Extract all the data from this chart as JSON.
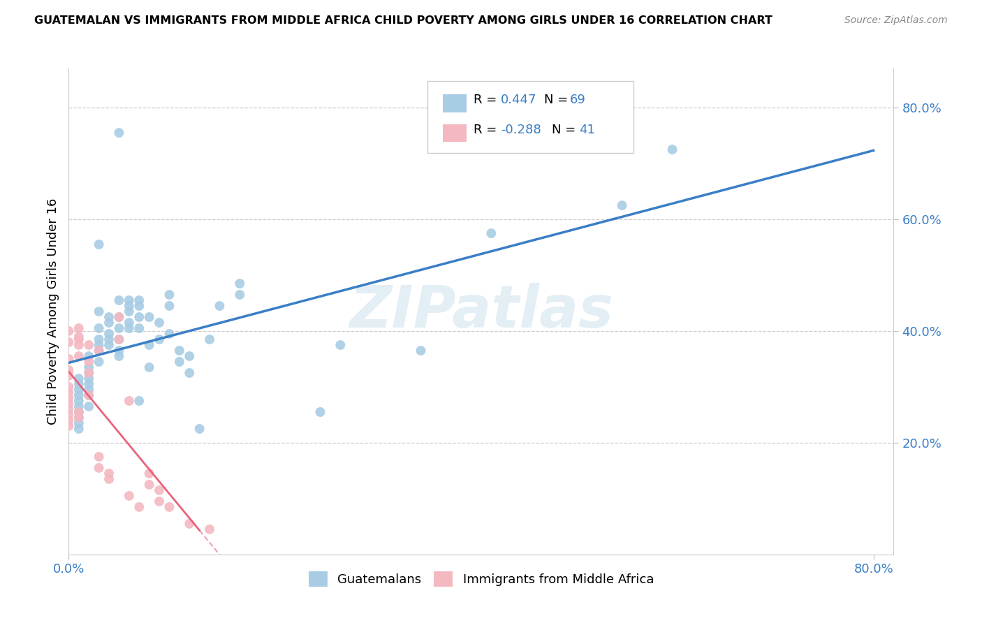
{
  "title": "GUATEMALAN VS IMMIGRANTS FROM MIDDLE AFRICA CHILD POVERTY AMONG GIRLS UNDER 16 CORRELATION CHART",
  "source": "Source: ZipAtlas.com",
  "ylabel": "Child Poverty Among Girls Under 16",
  "watermark": "ZIPatlas",
  "legend_blue_r": "0.447",
  "legend_blue_n": "69",
  "legend_pink_r": "-0.288",
  "legend_pink_n": "41",
  "blue_color": "#a8cce4",
  "pink_color": "#f4b8c1",
  "blue_line_color": "#3a7ec6",
  "pink_line_color": "#e8637a",
  "blue_scatter": [
    [
      0.01,
      0.245
    ],
    [
      0.01,
      0.265
    ],
    [
      0.01,
      0.275
    ],
    [
      0.01,
      0.285
    ],
    [
      0.01,
      0.295
    ],
    [
      0.01,
      0.305
    ],
    [
      0.01,
      0.315
    ],
    [
      0.01,
      0.235
    ],
    [
      0.01,
      0.225
    ],
    [
      0.01,
      0.255
    ],
    [
      0.02,
      0.265
    ],
    [
      0.02,
      0.285
    ],
    [
      0.02,
      0.305
    ],
    [
      0.02,
      0.325
    ],
    [
      0.02,
      0.335
    ],
    [
      0.02,
      0.355
    ],
    [
      0.02,
      0.315
    ],
    [
      0.02,
      0.295
    ],
    [
      0.03,
      0.345
    ],
    [
      0.03,
      0.365
    ],
    [
      0.03,
      0.385
    ],
    [
      0.03,
      0.405
    ],
    [
      0.03,
      0.375
    ],
    [
      0.03,
      0.435
    ],
    [
      0.03,
      0.555
    ],
    [
      0.04,
      0.375
    ],
    [
      0.04,
      0.385
    ],
    [
      0.04,
      0.395
    ],
    [
      0.04,
      0.415
    ],
    [
      0.04,
      0.425
    ],
    [
      0.05,
      0.385
    ],
    [
      0.05,
      0.405
    ],
    [
      0.05,
      0.425
    ],
    [
      0.05,
      0.355
    ],
    [
      0.05,
      0.365
    ],
    [
      0.05,
      0.455
    ],
    [
      0.05,
      0.755
    ],
    [
      0.06,
      0.405
    ],
    [
      0.06,
      0.415
    ],
    [
      0.06,
      0.435
    ],
    [
      0.06,
      0.445
    ],
    [
      0.06,
      0.455
    ],
    [
      0.07,
      0.405
    ],
    [
      0.07,
      0.425
    ],
    [
      0.07,
      0.445
    ],
    [
      0.07,
      0.455
    ],
    [
      0.07,
      0.275
    ],
    [
      0.08,
      0.375
    ],
    [
      0.08,
      0.425
    ],
    [
      0.08,
      0.335
    ],
    [
      0.09,
      0.385
    ],
    [
      0.09,
      0.415
    ],
    [
      0.1,
      0.445
    ],
    [
      0.1,
      0.465
    ],
    [
      0.1,
      0.395
    ],
    [
      0.11,
      0.365
    ],
    [
      0.11,
      0.345
    ],
    [
      0.12,
      0.325
    ],
    [
      0.12,
      0.355
    ],
    [
      0.13,
      0.225
    ],
    [
      0.14,
      0.385
    ],
    [
      0.15,
      0.445
    ],
    [
      0.17,
      0.485
    ],
    [
      0.17,
      0.465
    ],
    [
      0.25,
      0.255
    ],
    [
      0.27,
      0.375
    ],
    [
      0.35,
      0.365
    ],
    [
      0.42,
      0.575
    ],
    [
      0.55,
      0.625
    ],
    [
      0.6,
      0.725
    ]
  ],
  "pink_scatter": [
    [
      0.0,
      0.24
    ],
    [
      0.0,
      0.25
    ],
    [
      0.0,
      0.26
    ],
    [
      0.0,
      0.27
    ],
    [
      0.0,
      0.28
    ],
    [
      0.0,
      0.3
    ],
    [
      0.0,
      0.32
    ],
    [
      0.0,
      0.33
    ],
    [
      0.0,
      0.35
    ],
    [
      0.0,
      0.23
    ],
    [
      0.0,
      0.38
    ],
    [
      0.0,
      0.4
    ],
    [
      0.0,
      0.29
    ],
    [
      0.01,
      0.355
    ],
    [
      0.01,
      0.375
    ],
    [
      0.01,
      0.39
    ],
    [
      0.01,
      0.245
    ],
    [
      0.01,
      0.255
    ],
    [
      0.01,
      0.385
    ],
    [
      0.01,
      0.405
    ],
    [
      0.02,
      0.375
    ],
    [
      0.02,
      0.345
    ],
    [
      0.02,
      0.325
    ],
    [
      0.02,
      0.285
    ],
    [
      0.03,
      0.365
    ],
    [
      0.03,
      0.155
    ],
    [
      0.03,
      0.175
    ],
    [
      0.04,
      0.135
    ],
    [
      0.04,
      0.145
    ],
    [
      0.05,
      0.425
    ],
    [
      0.05,
      0.385
    ],
    [
      0.06,
      0.275
    ],
    [
      0.06,
      0.105
    ],
    [
      0.07,
      0.085
    ],
    [
      0.08,
      0.125
    ],
    [
      0.08,
      0.145
    ],
    [
      0.09,
      0.095
    ],
    [
      0.09,
      0.115
    ],
    [
      0.1,
      0.085
    ],
    [
      0.12,
      0.055
    ],
    [
      0.14,
      0.045
    ]
  ],
  "xlim": [
    0.0,
    0.82
  ],
  "ylim": [
    0.0,
    0.87
  ],
  "yticks": [
    0.2,
    0.4,
    0.6,
    0.8
  ],
  "ytick_labels": [
    "20.0%",
    "40.0%",
    "60.0%",
    "80.0%"
  ],
  "figsize": [
    14.06,
    8.92
  ],
  "dpi": 100
}
